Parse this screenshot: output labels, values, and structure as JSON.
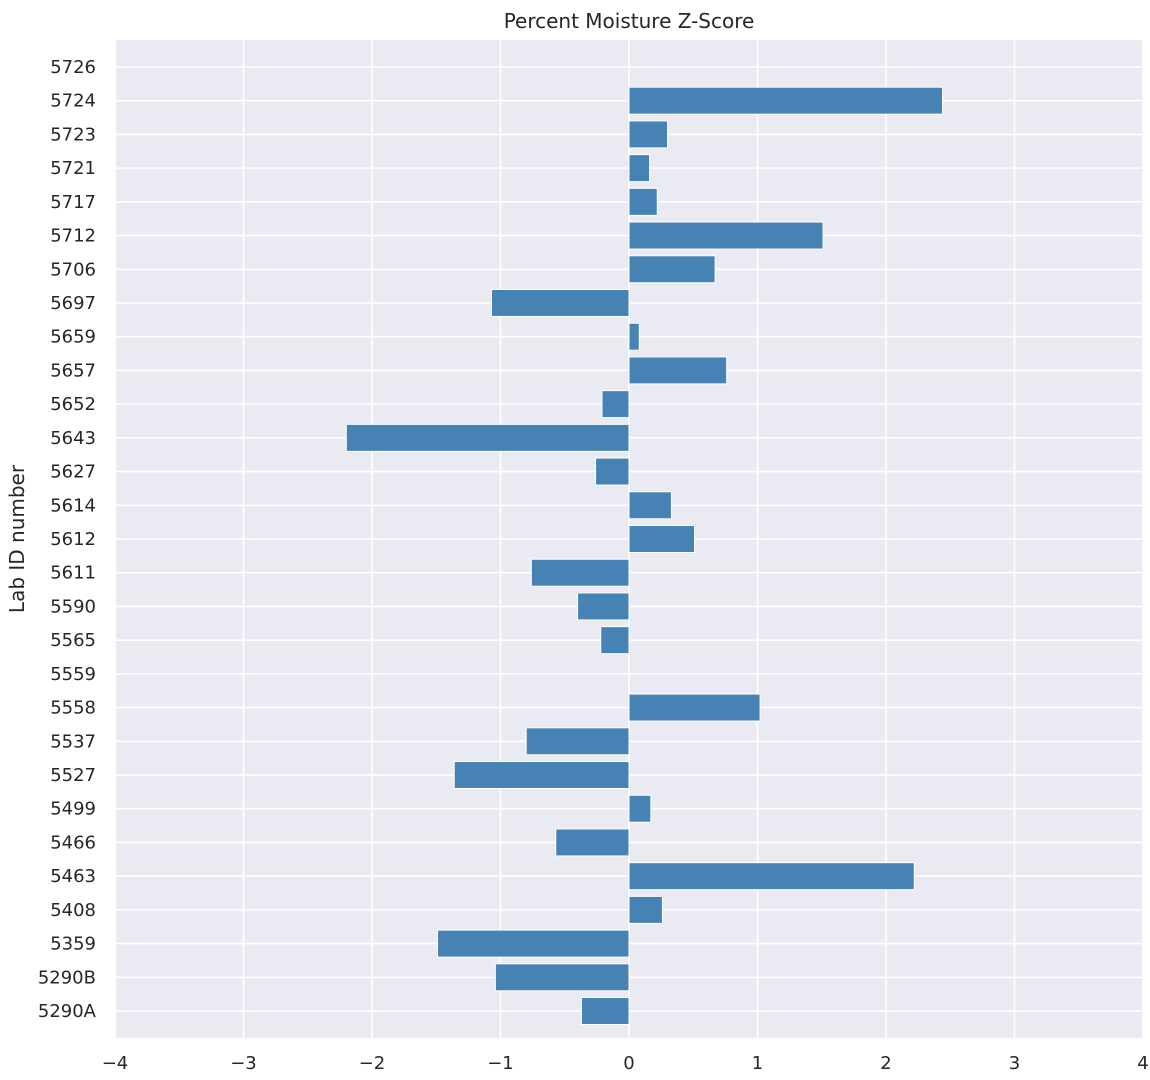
{
  "chart_data": {
    "type": "bar",
    "orientation": "horizontal",
    "title": "Percent Moisture Z-Score",
    "xlabel": "",
    "ylabel": "Lab ID number",
    "xlim": [
      -4,
      4
    ],
    "xticks": [
      -4,
      -3,
      -2,
      -1,
      0,
      1,
      2,
      3,
      4
    ],
    "xtick_labels": [
      "−4",
      "−3",
      "−2",
      "−1",
      "0",
      "1",
      "2",
      "3",
      "4"
    ],
    "grid": true,
    "bar_color": "#4682b4",
    "background_color": "#eaeaf2",
    "grid_color": "#ffffff",
    "categories": [
      "5290A",
      "5290B",
      "5359",
      "5408",
      "5463",
      "5466",
      "5499",
      "5527",
      "5537",
      "5558",
      "5559",
      "5565",
      "5590",
      "5611",
      "5612",
      "5614",
      "5627",
      "5643",
      "5652",
      "5657",
      "5659",
      "5697",
      "5706",
      "5712",
      "5717",
      "5721",
      "5723",
      "5724",
      "5726"
    ],
    "values": [
      -0.37,
      -1.04,
      -1.49,
      0.26,
      2.22,
      -0.57,
      0.17,
      -1.36,
      -0.8,
      1.02,
      0.0,
      -0.22,
      -0.4,
      -0.76,
      0.51,
      0.33,
      -0.26,
      -2.2,
      -0.21,
      0.76,
      0.08,
      -1.07,
      0.67,
      1.51,
      0.22,
      0.16,
      0.3,
      2.44,
      0.0
    ]
  }
}
